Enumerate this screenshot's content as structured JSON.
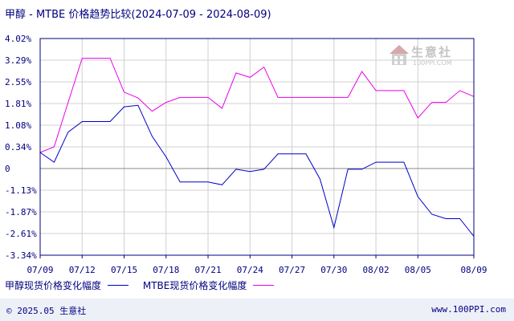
{
  "title": "甲醇 - MTBE 价格趋势比较(2024-07-09 - 2024-08-09)",
  "footer": {
    "copyright": "© 2025.05 生意社",
    "url": "www.100PPI.com"
  },
  "watermark": {
    "text": "生意社",
    "sub": "100PPI.COM"
  },
  "colors": {
    "series1": "#0000cc",
    "series2": "#e800e8",
    "grid": "#d0d0d0",
    "axis": "#000080",
    "zero": "#888888"
  },
  "chart_data": {
    "type": "line",
    "title": "甲醇 - MTBE 价格趋势比较(2024-07-09 - 2024-08-09)",
    "xlabel": "",
    "ylabel": "",
    "x_ticks": [
      "07/09",
      "07/12",
      "07/15",
      "07/18",
      "07/21",
      "07/24",
      "07/27",
      "07/30",
      "08/02",
      "08/05",
      "08/09"
    ],
    "y_ticks": [
      "4.02%",
      "3.29%",
      "2.55%",
      "1.81%",
      "1.08%",
      "0.34%",
      "0",
      "-1.13%",
      "-1.87%",
      "-2.61%",
      "-3.34%"
    ],
    "ylim": [
      -3.34,
      4.02
    ],
    "grid": true,
    "legend_position": "bottom-left",
    "x": [
      "07/09",
      "07/10",
      "07/11",
      "07/12",
      "07/13",
      "07/14",
      "07/15",
      "07/16",
      "07/17",
      "07/18",
      "07/19",
      "07/20",
      "07/21",
      "07/22",
      "07/23",
      "07/24",
      "07/25",
      "07/26",
      "07/27",
      "07/28",
      "07/29",
      "07/30",
      "07/31",
      "08/01",
      "08/02",
      "08/03",
      "08/04",
      "08/05",
      "08/06",
      "08/07",
      "08/08",
      "08/09"
    ],
    "series": [
      {
        "name": "甲醇现货价格变化幅度",
        "values": [
          0.15,
          -0.18,
          0.84,
          1.2,
          1.2,
          1.2,
          1.7,
          1.75,
          0.7,
          0.0,
          -0.85,
          -0.85,
          -0.85,
          -0.95,
          -0.42,
          -0.5,
          -0.42,
          0.1,
          0.1,
          0.1,
          -0.75,
          -2.4,
          -0.42,
          -0.42,
          -0.18,
          -0.18,
          -0.18,
          -1.35,
          -1.95,
          -2.1,
          -2.1,
          -2.7
        ]
      },
      {
        "name": "MTBE现货价格变化幅度",
        "values": [
          0.15,
          0.34,
          1.85,
          3.35,
          3.35,
          3.35,
          2.2,
          2.0,
          1.55,
          1.85,
          2.02,
          2.02,
          2.02,
          1.65,
          2.85,
          2.7,
          3.05,
          2.02,
          2.02,
          2.02,
          2.02,
          2.02,
          2.02,
          2.9,
          2.25,
          2.25,
          2.25,
          1.32,
          1.85,
          1.85,
          2.25,
          2.05
        ]
      }
    ]
  }
}
